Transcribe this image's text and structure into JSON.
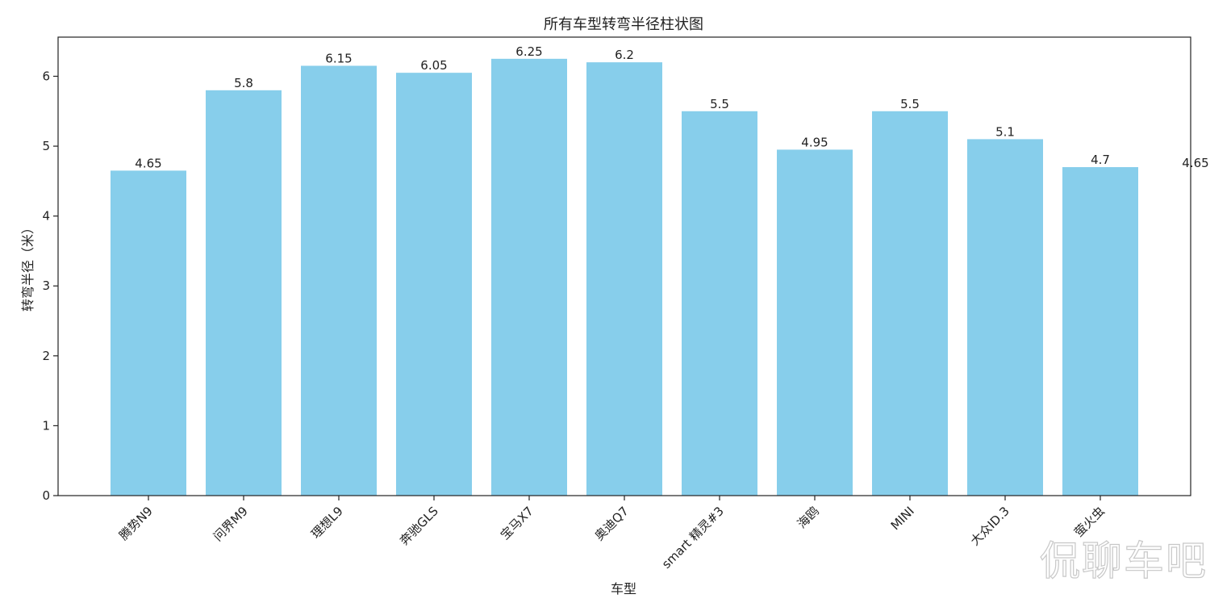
{
  "chart_data": {
    "type": "bar",
    "title": "所有车型转弯半径柱状图",
    "xlabel": "车型",
    "ylabel": "转弯半径（米）",
    "categories": [
      "腾势N9",
      "问界M9",
      "理想L9",
      "奔驰GLS",
      "宝马X7",
      "奥迪Q7",
      "smart 精灵#3",
      "海鸥",
      "MINI",
      "大众ID.3",
      "萤火虫"
    ],
    "values": [
      4.65,
      5.8,
      6.15,
      6.05,
      6.25,
      6.2,
      5.5,
      4.95,
      5.5,
      5.1,
      4.7
    ],
    "data_labels": [
      "4.65",
      "5.8",
      "6.15",
      "6.05",
      "6.25",
      "6.2",
      "5.5",
      "4.95",
      "5.5",
      "5.1",
      "4.7"
    ],
    "extra_label": "4.65",
    "ylim": [
      0,
      6.56
    ],
    "yticks": [
      0,
      1,
      2,
      3,
      4,
      5,
      6
    ],
    "bar_color": "#87ceeb",
    "grid": false,
    "legend": "none"
  },
  "watermark": "侃聊车吧"
}
